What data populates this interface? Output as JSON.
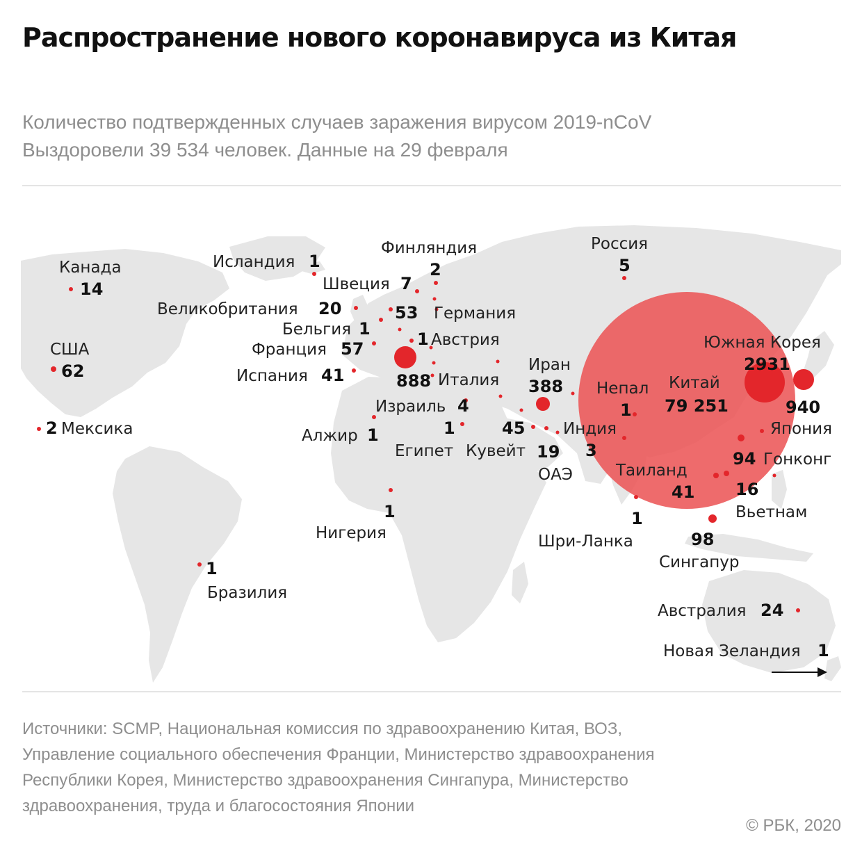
{
  "header": {
    "title": "Распространение нового коронавируса из Китая",
    "subtitle_line1": "Количество подтвержденных случаев заражения вирусом 2019-nCoV",
    "subtitle_line2": "Выздоровели 39 534 человек. Данные на 29 февраля"
  },
  "colors": {
    "marker": "#e3262b",
    "china_circle": "#ec5658",
    "land": "#e6e6e6",
    "text_muted": "#8e8e8e"
  },
  "map": {
    "countries": [
      {
        "id": "canada",
        "name": "Канада",
        "cases": "14"
      },
      {
        "id": "usa",
        "name": "США",
        "cases": "62"
      },
      {
        "id": "mexico",
        "name": "Мексика",
        "cases": "2"
      },
      {
        "id": "brazil",
        "name": "Бразилия",
        "cases": "1"
      },
      {
        "id": "iceland",
        "name": "Исландия",
        "cases": "1"
      },
      {
        "id": "finland",
        "name": "Финляндия",
        "cases": "2"
      },
      {
        "id": "sweden",
        "name": "Швеция",
        "cases": "7"
      },
      {
        "id": "uk",
        "name": "Великобритания",
        "cases": "20"
      },
      {
        "id": "germany",
        "name": "Германия",
        "cases": "53"
      },
      {
        "id": "belgium",
        "name": "Бельгия",
        "cases": "1"
      },
      {
        "id": "france",
        "name": "Франция",
        "cases": "57"
      },
      {
        "id": "austria",
        "name": "Австрия",
        "cases": "1"
      },
      {
        "id": "spain",
        "name": "Испания",
        "cases": "41"
      },
      {
        "id": "italy",
        "name": "Италия",
        "cases": "888"
      },
      {
        "id": "israel",
        "name": "Израиль",
        "cases": "4"
      },
      {
        "id": "algeria",
        "name": "Алжир",
        "cases": "1"
      },
      {
        "id": "egypt",
        "name": "Египет",
        "cases": "1"
      },
      {
        "id": "kuwait",
        "name": "Кувейт",
        "cases": "45"
      },
      {
        "id": "uae",
        "name": "ОАЭ",
        "cases": "19"
      },
      {
        "id": "iran",
        "name": "Иран",
        "cases": "388"
      },
      {
        "id": "nigeria",
        "name": "Нигерия",
        "cases": "1"
      },
      {
        "id": "russia",
        "name": "Россия",
        "cases": "5"
      },
      {
        "id": "nepal",
        "name": "Непал",
        "cases": "1"
      },
      {
        "id": "india",
        "name": "Индия",
        "cases": "3"
      },
      {
        "id": "sri_lanka",
        "name": "Шри-Ланка",
        "cases": "1"
      },
      {
        "id": "china",
        "name": "Китай",
        "cases": "79 251"
      },
      {
        "id": "south_korea",
        "name": "Южная Корея",
        "cases": "2931"
      },
      {
        "id": "japan",
        "name": "Япония",
        "cases": "940"
      },
      {
        "id": "hong_kong",
        "name": "Гонконг",
        "cases": "94"
      },
      {
        "id": "thailand",
        "name": "Таиланд",
        "cases": "41"
      },
      {
        "id": "vietnam",
        "name": "Вьетнам",
        "cases": "16"
      },
      {
        "id": "singapore",
        "name": "Сингапур",
        "cases": "98"
      },
      {
        "id": "australia",
        "name": "Австралия",
        "cases": "24"
      },
      {
        "id": "new_zealand",
        "name": "Новая Зеландия",
        "cases": "1"
      }
    ]
  },
  "footer": {
    "sources": "Источники: SCMP, Национальная комиссия по здравоохранению Китая, ВОЗ, Управление социального обеспечения Франции, Министерство здравоохранения Республики Корея, Министерство здравоохранения Сингапура, Министерство здравоохранения, труда и благосостояния Японии",
    "copyright": "© РБК, 2020"
  }
}
